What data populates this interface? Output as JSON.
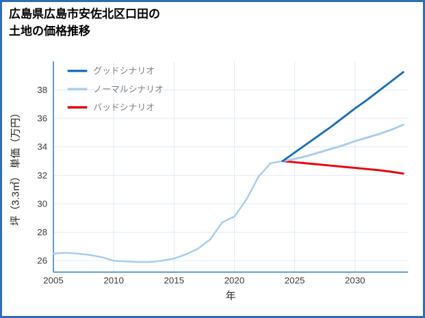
{
  "title": {
    "line1": "広島県広島市安佐北区口田の",
    "line2": "土地の価格推移"
  },
  "colors": {
    "frame_border": "#2e6db6",
    "axis_spine": "#5b9bd5",
    "gridline": "#dfeaf5",
    "tick_label": "#3a3a3a",
    "legend_text": "#808080",
    "good": "#1a6fba",
    "normal": "#a7cdf0",
    "bad": "#e8000b"
  },
  "chart_data": {
    "type": "line",
    "title": "広島県広島市安佐北区口田の土地の価格推移",
    "xlabel": "年",
    "ylabel": "坪（3.3㎡） 単価（万円）",
    "xlim": [
      2005,
      2034.4
    ],
    "ylim": [
      25.2,
      40.0
    ],
    "x_ticks": [
      2005,
      2010,
      2015,
      2020,
      2025,
      2030
    ],
    "y_ticks": [
      26,
      28,
      30,
      32,
      34,
      36,
      38
    ],
    "grid": true,
    "legend_position": "top-left",
    "legend": [
      {
        "label": "グッドシナリオ",
        "series": "good"
      },
      {
        "label": "ノーマルシナリオ",
        "series": "normal"
      },
      {
        "label": "バッドシナリオ",
        "series": "bad"
      }
    ],
    "series": [
      {
        "name": "history",
        "color_key": "normal",
        "width": 2.5,
        "x": [
          2005,
          2006,
          2007,
          2008,
          2009,
          2010,
          2011,
          2012,
          2013,
          2014,
          2015,
          2016,
          2017,
          2018,
          2019,
          2020,
          2021,
          2022,
          2023,
          2024
        ],
        "values": [
          26.5,
          26.55,
          26.5,
          26.4,
          26.25,
          26.0,
          25.95,
          25.9,
          25.9,
          26.0,
          26.15,
          26.45,
          26.85,
          27.5,
          28.7,
          29.1,
          30.3,
          31.9,
          32.85,
          33.0
        ]
      },
      {
        "name": "bad",
        "color_key": "bad",
        "width": 3,
        "x": [
          2024,
          2025,
          2026,
          2027,
          2028,
          2029,
          2030,
          2031,
          2032,
          2033,
          2034
        ],
        "values": [
          33.0,
          32.92,
          32.84,
          32.76,
          32.68,
          32.6,
          32.52,
          32.44,
          32.36,
          32.25,
          32.12
        ]
      },
      {
        "name": "normal",
        "color_key": "normal",
        "width": 3,
        "x": [
          2024,
          2025,
          2026,
          2027,
          2028,
          2029,
          2030,
          2031,
          2032,
          2033,
          2034
        ],
        "values": [
          33.0,
          33.15,
          33.35,
          33.6,
          33.85,
          34.1,
          34.4,
          34.65,
          34.9,
          35.2,
          35.55
        ]
      },
      {
        "name": "good",
        "color_key": "good",
        "width": 3,
        "x": [
          2024,
          2025,
          2026,
          2027,
          2028,
          2029,
          2030,
          2031,
          2032,
          2033,
          2034
        ],
        "values": [
          33.0,
          33.6,
          34.2,
          34.8,
          35.4,
          36.05,
          36.7,
          37.3,
          37.95,
          38.6,
          39.25
        ]
      }
    ]
  }
}
